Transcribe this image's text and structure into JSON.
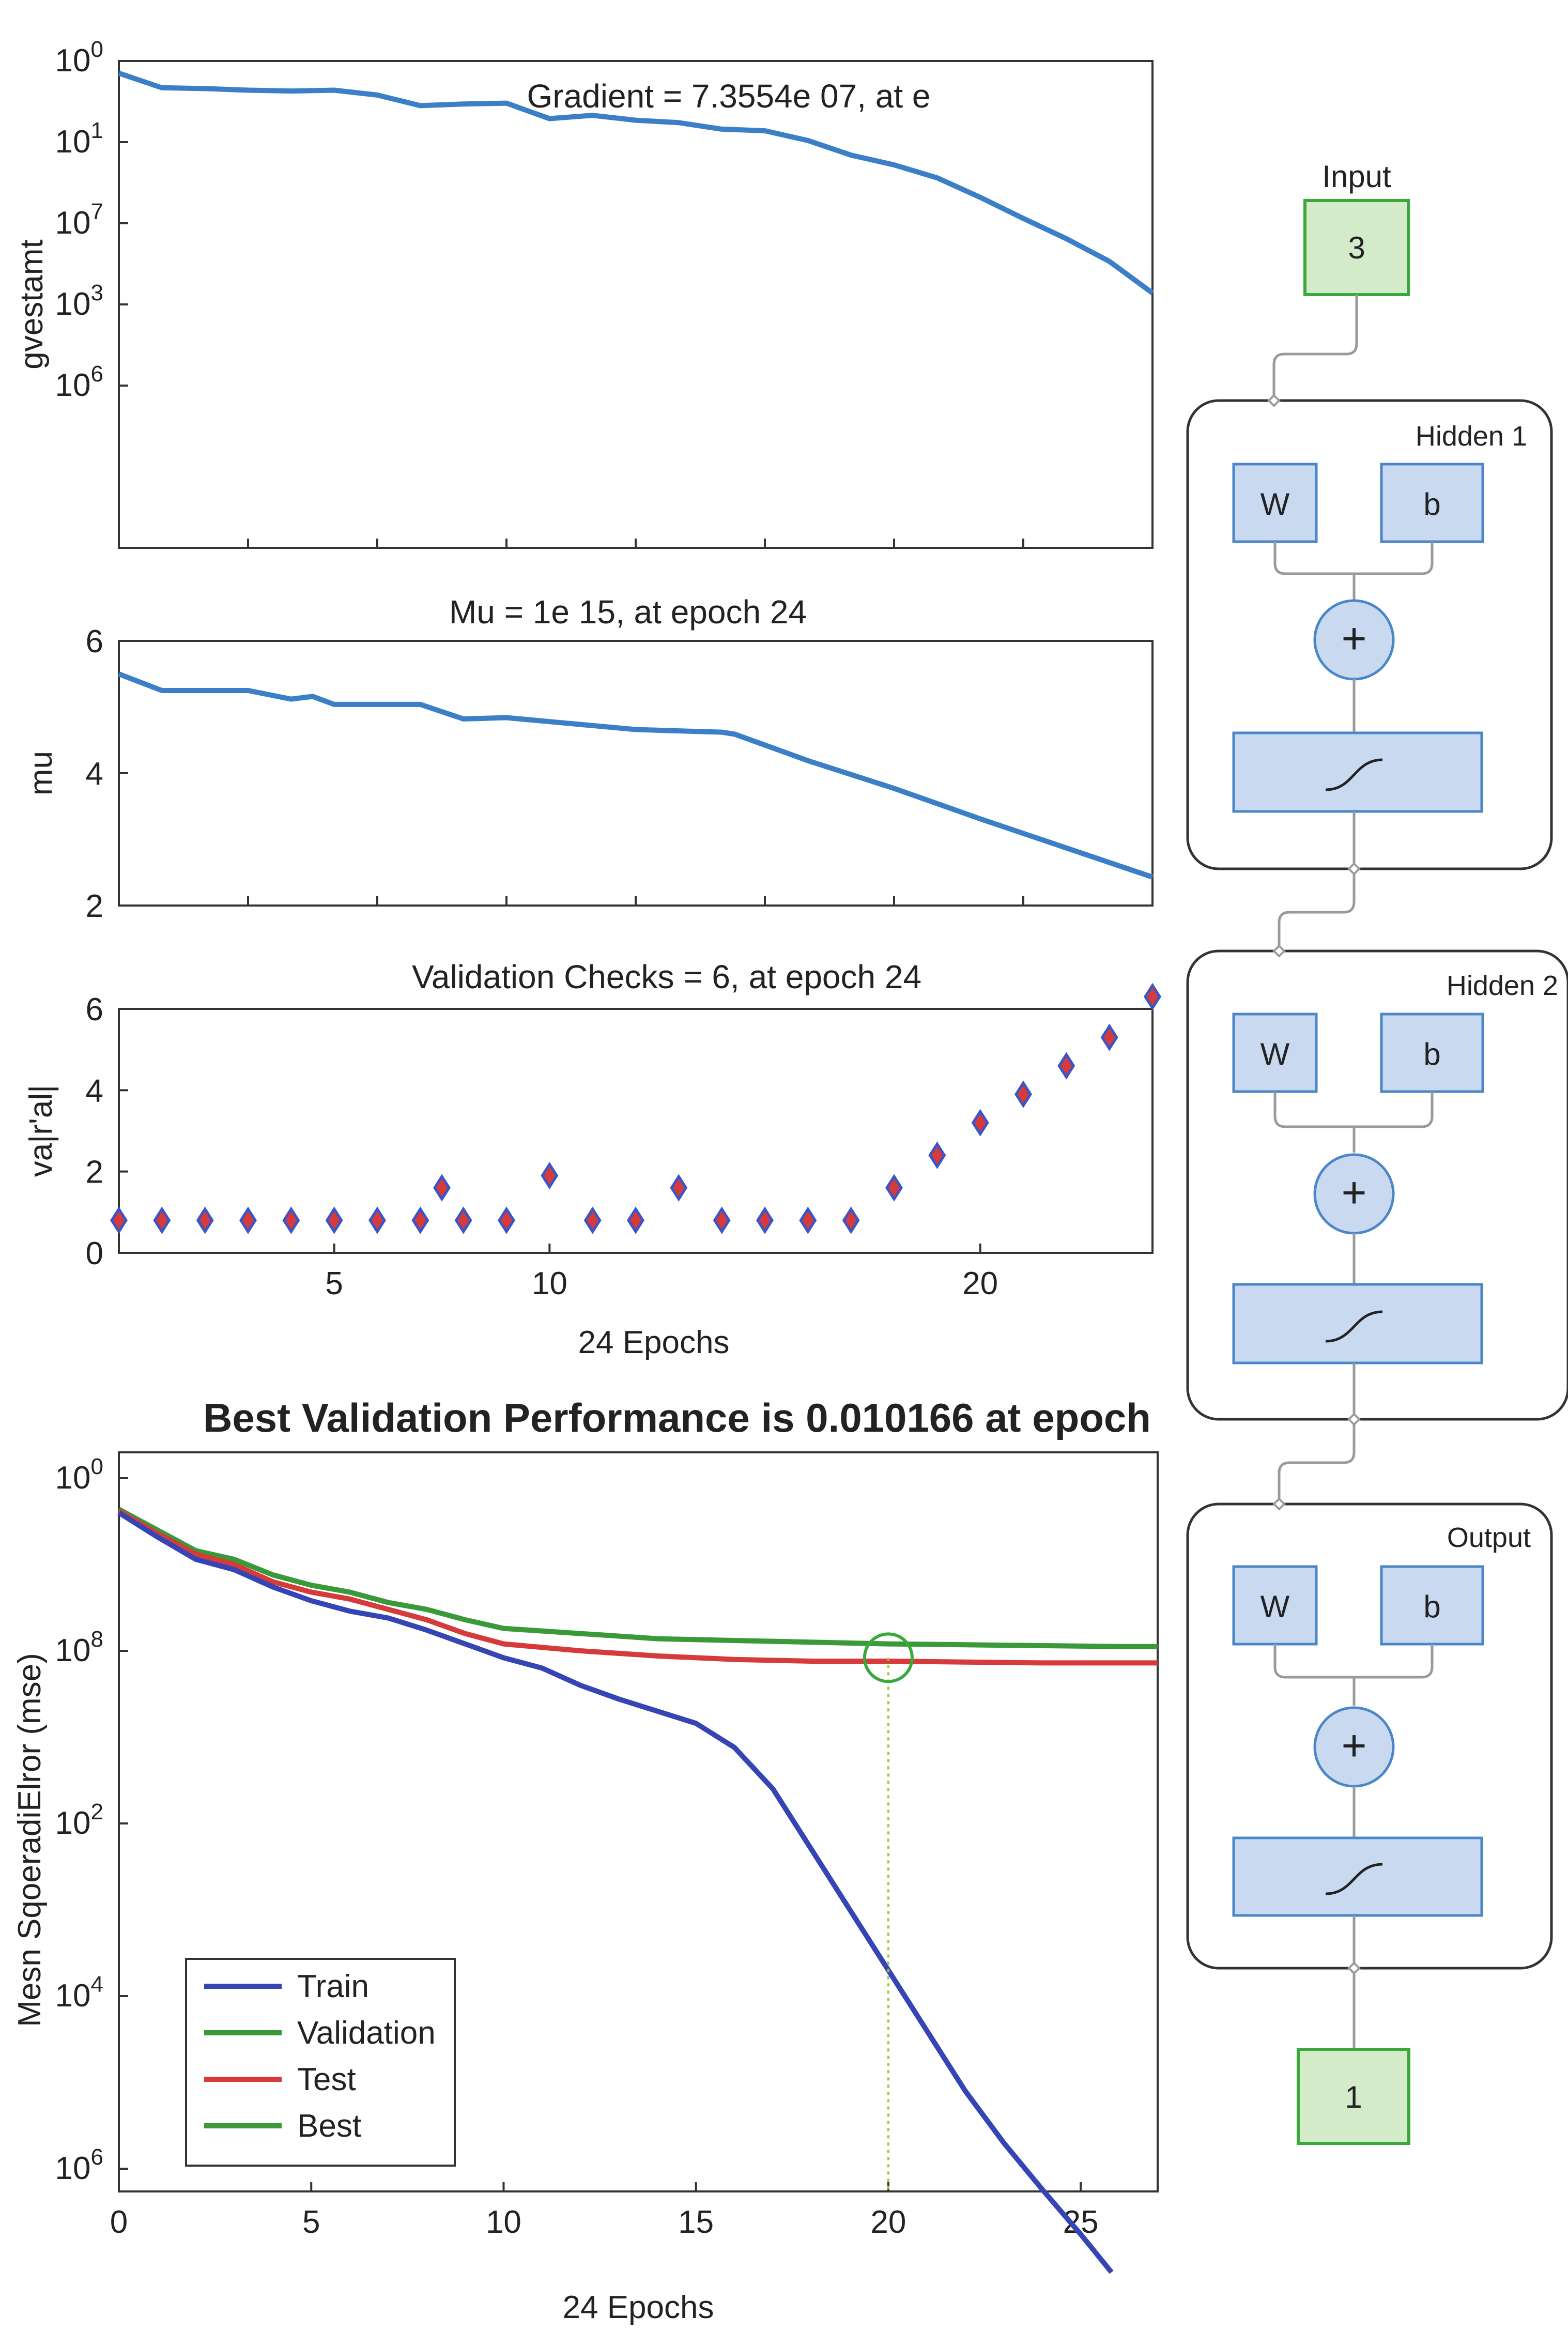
{
  "chart_data": [
    {
      "type": "line",
      "title": "Gradient = 7.3554e 07, at e",
      "ylabel": "gvestamt",
      "xlabel": "",
      "xlim": [
        0,
        24
      ],
      "yscale": "log",
      "ylim": [
        6,
        0
      ],
      "yticks": [
        {
          "value": 0,
          "base": "10",
          "exp": "0"
        },
        {
          "value": 1,
          "base": "10",
          "exp": "1"
        },
        {
          "value": 2,
          "base": "10",
          "exp": "7"
        },
        {
          "value": 3,
          "base": "10",
          "exp": "3"
        },
        {
          "value": 4,
          "base": "10",
          "exp": "6"
        }
      ],
      "color": "#3a7fc8",
      "x": [
        0,
        1,
        2,
        3,
        4,
        5,
        6,
        7,
        8,
        9,
        10,
        11,
        12,
        13,
        14,
        15,
        16,
        17,
        18,
        19,
        20,
        21,
        22,
        23,
        24
      ],
      "y": [
        0.15,
        0.33,
        0.34,
        0.36,
        0.37,
        0.36,
        0.42,
        0.55,
        0.53,
        0.52,
        0.71,
        0.67,
        0.73,
        0.76,
        0.84,
        0.86,
        0.98,
        1.16,
        1.28,
        1.44,
        1.68,
        1.94,
        2.19,
        2.47,
        2.86
      ]
    },
    {
      "type": "line",
      "title": "Mu = 1e 15, at epoch 24",
      "ylabel": "mu",
      "xlabel": "",
      "xlim": [
        0,
        24
      ],
      "ylim": [
        2,
        6
      ],
      "yticks": [
        2,
        4,
        6
      ],
      "color": "#3a7fc8",
      "x": [
        0,
        1,
        2,
        3,
        4,
        4.5,
        5,
        6,
        7,
        8,
        9,
        10,
        11,
        12,
        13,
        14,
        14.3,
        16,
        18,
        20,
        22,
        24
      ],
      "y": [
        5.5,
        5.25,
        5.25,
        5.25,
        5.12,
        5.16,
        5.04,
        5.04,
        5.04,
        4.82,
        4.84,
        4.78,
        4.72,
        4.66,
        4.64,
        4.62,
        4.59,
        4.19,
        3.77,
        3.31,
        2.87,
        2.43
      ]
    },
    {
      "type": "scatter",
      "title": "Validation Checks = 6, at epoch 24",
      "ylabel": "va|r'al|",
      "xlabel": "24 Epochs",
      "xlim": [
        0,
        24
      ],
      "ylim": [
        0,
        6
      ],
      "xticks": [
        5,
        10,
        20
      ],
      "yticks": [
        0,
        2,
        4,
        6
      ],
      "marker_color": "#d63a3a",
      "marker_edge": "#3a55c8",
      "x": [
        0,
        1,
        2,
        3,
        4,
        5,
        6,
        7,
        7.5,
        8,
        9,
        10,
        11,
        12,
        13,
        14,
        15,
        16,
        17,
        18,
        19,
        20,
        21,
        22,
        23,
        24
      ],
      "y": [
        0.8,
        0.8,
        0.8,
        0.8,
        0.8,
        0.8,
        0.8,
        0.8,
        1.6,
        0.8,
        0.8,
        1.9,
        0.8,
        0.8,
        1.6,
        0.8,
        0.8,
        0.8,
        0.8,
        1.6,
        2.4,
        3.2,
        3.9,
        4.6,
        5.3,
        6.3
      ]
    },
    {
      "type": "line",
      "title": "Best Validation Performance is 0.010166 at epoch",
      "ylabel": "Mesn SqoeradiElror (mse)",
      "xlabel": "24 Epochs",
      "xlim": [
        0,
        27
      ],
      "xticks": [
        0,
        5,
        10,
        15,
        20,
        25
      ],
      "yscale": "log",
      "ylim": [
        0,
        5
      ],
      "yticks": [
        {
          "value": 0,
          "base": "10",
          "exp": "0"
        },
        {
          "value": 1,
          "base": "10",
          "exp": "8"
        },
        {
          "value": 2,
          "base": "10",
          "exp": "2"
        },
        {
          "value": 3,
          "base": "10",
          "exp": "4"
        },
        {
          "value": 4,
          "base": "10",
          "exp": "6"
        }
      ],
      "best_marker": {
        "x": 20,
        "y": 1.04
      },
      "legend_position": "bottom-left",
      "series": [
        {
          "name": "Train",
          "color": "#3545b5",
          "x": [
            0,
            1,
            2,
            3,
            4,
            5,
            6,
            7,
            8,
            9,
            10,
            11,
            12,
            13,
            14,
            15,
            16,
            17,
            18,
            19,
            20,
            21,
            22,
            23,
            24,
            25,
            25.8
          ],
          "y": [
            0.2,
            0.34,
            0.47,
            0.53,
            0.63,
            0.71,
            0.77,
            0.81,
            0.88,
            0.96,
            1.04,
            1.1,
            1.2,
            1.28,
            1.35,
            1.42,
            1.56,
            1.8,
            2.15,
            2.5,
            2.85,
            3.2,
            3.55,
            3.85,
            4.12,
            4.38,
            4.6
          ]
        },
        {
          "name": "Validation",
          "color": "#3a9a3a",
          "x": [
            0,
            1,
            2,
            3,
            4,
            5,
            6,
            7,
            8,
            9,
            10,
            12,
            14,
            16,
            18,
            20,
            22,
            24,
            26,
            27
          ],
          "y": [
            0.18,
            0.3,
            0.42,
            0.47,
            0.56,
            0.62,
            0.66,
            0.72,
            0.76,
            0.82,
            0.87,
            0.9,
            0.93,
            0.94,
            0.95,
            0.96,
            0.965,
            0.97,
            0.975,
            0.975
          ]
        },
        {
          "name": "Test",
          "color": "#d63a3a",
          "x": [
            0,
            1,
            2,
            3,
            4,
            5,
            6,
            7,
            8,
            9,
            10,
            12,
            14,
            16,
            18,
            20,
            22,
            24,
            26,
            27
          ],
          "y": [
            0.19,
            0.32,
            0.44,
            0.5,
            0.6,
            0.66,
            0.7,
            0.76,
            0.82,
            0.9,
            0.96,
            1.0,
            1.03,
            1.05,
            1.06,
            1.06,
            1.065,
            1.07,
            1.07,
            1.07
          ]
        },
        {
          "name": "Best",
          "color": "#3a9a3a",
          "x": [],
          "y": []
        }
      ]
    }
  ],
  "network_diagram": {
    "input_label": "Input",
    "input_value": "3",
    "layers": [
      {
        "name": "Hidden 1",
        "weight": "W",
        "bias": "b",
        "sum": "+"
      },
      {
        "name": "Hidden 2",
        "weight": "W",
        "bias": "b",
        "sum": "+"
      },
      {
        "name": "Output",
        "weight": "W",
        "bias": "b",
        "sum": "+"
      }
    ],
    "output_value": "1"
  }
}
